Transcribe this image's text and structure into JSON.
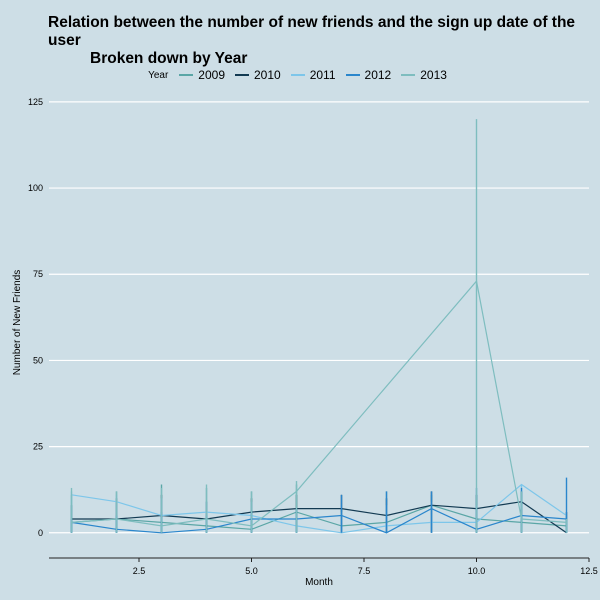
{
  "chart_data": {
    "type": "line",
    "title": "Relation between the number of new friends and the sign up date of the user",
    "subtitle": "Broken down by Year",
    "xlabel": "Month",
    "ylabel": "Number of New Friends",
    "xlim": [
      0.5,
      12.5
    ],
    "ylim": [
      -5,
      127
    ],
    "xticks": [
      2.5,
      5.0,
      7.5,
      10.0,
      12.5
    ],
    "xtick_labels": [
      "2.5",
      "5.0",
      "7.5",
      "10.0",
      "12.5"
    ],
    "yticks": [
      0,
      25,
      50,
      75,
      100,
      125
    ],
    "grid": "horizontal",
    "legend": {
      "title": "Year",
      "placement": "top"
    },
    "series": [
      {
        "name": "2009",
        "color": "#5aa6a6",
        "points": [
          [
            1,
            3
          ],
          [
            2,
            4
          ],
          [
            3,
            3
          ],
          [
            4,
            2
          ],
          [
            5,
            1
          ],
          [
            6,
            6
          ],
          [
            7,
            2
          ],
          [
            8,
            3
          ],
          [
            9,
            8
          ],
          [
            10,
            4
          ],
          [
            11,
            3
          ],
          [
            12,
            2
          ]
        ],
        "ranges": [
          [
            1,
            0,
            11
          ],
          [
            2,
            0,
            12
          ],
          [
            3,
            0,
            14
          ],
          [
            4,
            0,
            13
          ],
          [
            5,
            0,
            12
          ],
          [
            6,
            0,
            14
          ],
          [
            7,
            0,
            7
          ],
          [
            8,
            0,
            12
          ],
          [
            9,
            0,
            11
          ],
          [
            10,
            0,
            11
          ],
          [
            11,
            0,
            12
          ],
          [
            12,
            0,
            5
          ]
        ]
      },
      {
        "name": "2010",
        "color": "#123a52",
        "points": [
          [
            1,
            4
          ],
          [
            2,
            4
          ],
          [
            3,
            5
          ],
          [
            4,
            4
          ],
          [
            5,
            6
          ],
          [
            6,
            7
          ],
          [
            7,
            7
          ],
          [
            8,
            5
          ],
          [
            9,
            8
          ],
          [
            10,
            7
          ],
          [
            11,
            9
          ],
          [
            12,
            0
          ]
        ],
        "ranges": [
          [
            1,
            0,
            8
          ],
          [
            2,
            0,
            10
          ],
          [
            3,
            0,
            11
          ],
          [
            4,
            0,
            9
          ],
          [
            5,
            0,
            10
          ],
          [
            6,
            0,
            11
          ],
          [
            7,
            0,
            11
          ],
          [
            8,
            0,
            10
          ],
          [
            9,
            0,
            12
          ],
          [
            10,
            0,
            11
          ],
          [
            11,
            0,
            12
          ],
          [
            12,
            0,
            6
          ]
        ]
      },
      {
        "name": "2011",
        "color": "#7dc6ea",
        "points": [
          [
            1,
            11
          ],
          [
            2,
            9
          ],
          [
            3,
            5
          ],
          [
            4,
            6
          ],
          [
            5,
            5
          ],
          [
            6,
            2
          ],
          [
            7,
            0
          ],
          [
            8,
            2
          ],
          [
            9,
            3
          ],
          [
            10,
            3
          ],
          [
            11,
            14
          ],
          [
            12,
            5
          ]
        ],
        "ranges": [
          [
            1,
            0,
            12
          ],
          [
            2,
            0,
            11
          ],
          [
            3,
            0,
            10
          ],
          [
            4,
            0,
            9
          ],
          [
            5,
            0,
            9
          ],
          [
            6,
            0,
            7
          ],
          [
            7,
            0,
            6
          ],
          [
            8,
            0,
            8
          ],
          [
            9,
            0,
            9
          ],
          [
            10,
            0,
            8
          ],
          [
            11,
            0,
            14
          ],
          [
            12,
            0,
            5
          ]
        ]
      },
      {
        "name": "2012",
        "color": "#2a86cc",
        "points": [
          [
            1,
            3
          ],
          [
            2,
            1
          ],
          [
            3,
            0
          ],
          [
            4,
            1
          ],
          [
            5,
            4
          ],
          [
            6,
            4
          ],
          [
            7,
            5
          ],
          [
            8,
            0
          ],
          [
            9,
            7
          ],
          [
            10,
            1
          ],
          [
            11,
            5
          ],
          [
            12,
            4
          ]
        ],
        "ranges": [
          [
            1,
            0,
            4
          ],
          [
            2,
            0,
            5
          ],
          [
            3,
            0,
            6
          ],
          [
            4,
            0,
            5
          ],
          [
            5,
            0,
            6
          ],
          [
            6,
            0,
            7
          ],
          [
            7,
            0,
            11
          ],
          [
            8,
            0,
            12
          ],
          [
            9,
            0,
            12
          ],
          [
            10,
            0,
            13
          ],
          [
            11,
            0,
            13
          ],
          [
            12,
            0,
            16
          ]
        ]
      },
      {
        "name": "2013",
        "color": "#7ebdbf",
        "points": [
          [
            1,
            3
          ],
          [
            2,
            4
          ],
          [
            3,
            2
          ],
          [
            4,
            4
          ],
          [
            5,
            2
          ],
          [
            6,
            12
          ],
          [
            10,
            73
          ],
          [
            11,
            4
          ],
          [
            12,
            3
          ]
        ],
        "ranges": [
          [
            1,
            0,
            13
          ],
          [
            2,
            0,
            12
          ],
          [
            3,
            0,
            13
          ],
          [
            4,
            0,
            14
          ],
          [
            5,
            0,
            12
          ],
          [
            6,
            0,
            15
          ],
          [
            10,
            0,
            120
          ],
          [
            11,
            0,
            12
          ],
          [
            12,
            0,
            4
          ]
        ]
      }
    ]
  }
}
